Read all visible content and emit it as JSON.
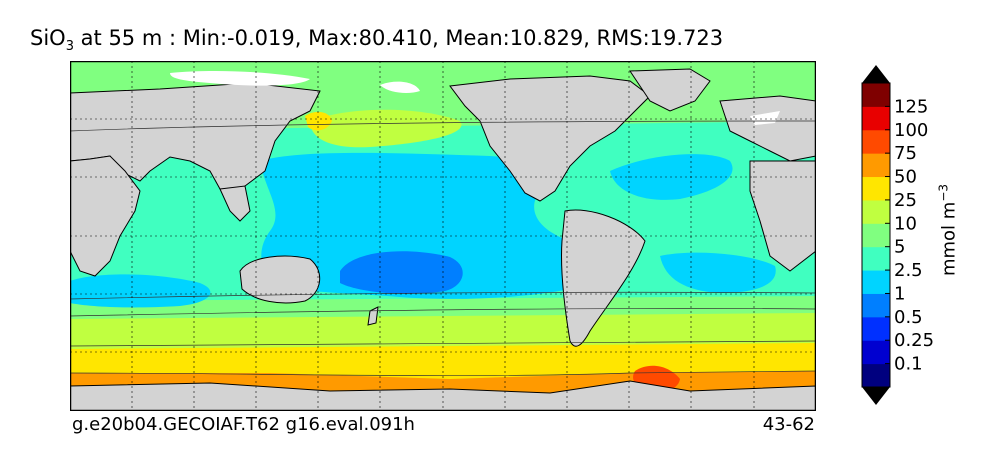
{
  "title": {
    "variable": "SiO",
    "variable_sub": "3",
    "rest": " at 55 m : Min:-0.019, Max:80.410, Mean:10.829, RMS:19.723"
  },
  "footer": {
    "left": "g.e20b04.GECOIAF.T62 g16.eval.091h",
    "right": "43-62"
  },
  "colorbar": {
    "label": "mmol m",
    "label_sup": "−3",
    "ticks": [
      "0.1",
      "0.25",
      "0.5",
      "1",
      "2.5",
      "5",
      "10",
      "25",
      "50",
      "75",
      "100",
      "125"
    ],
    "colors": [
      "#00007f",
      "#0000d0",
      "#0030ff",
      "#007fff",
      "#00d4ff",
      "#40ffc0",
      "#80ff80",
      "#c0ff40",
      "#ffe600",
      "#ff9a00",
      "#ff4a00",
      "#e80000",
      "#7f0000"
    ]
  },
  "map": {
    "land_color": "#d3d3d3",
    "missing_color": "#ffffff",
    "grid": true
  }
}
